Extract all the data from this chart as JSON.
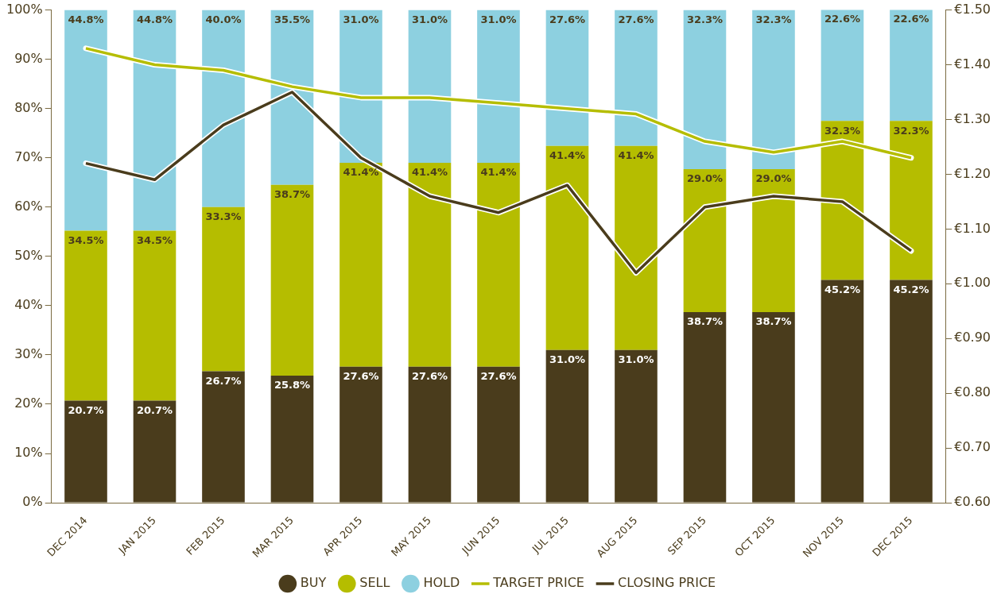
{
  "chart_data": {
    "type": "bar",
    "stacked": true,
    "legend": "bottom",
    "grid": false,
    "marker": "none",
    "categories": [
      "DEC 2014",
      "JAN 2015",
      "FEB 2015",
      "MAR 2015",
      "APR 2015",
      "MAY 2015",
      "JUN 2015",
      "JUL 2015",
      "AUG 2015",
      "SEP 2015",
      "OCT 2015",
      "NOV 2015",
      "DEC 2015"
    ],
    "ylim": [
      0,
      100
    ],
    "yticks": [
      {
        "value": 0,
        "label": "0%"
      },
      {
        "value": 10,
        "label": "10%"
      },
      {
        "value": 20,
        "label": "20%"
      },
      {
        "value": 30,
        "label": "30%"
      },
      {
        "value": 40,
        "label": "40%"
      },
      {
        "value": 50,
        "label": "50%"
      },
      {
        "value": 60,
        "label": "60%"
      },
      {
        "value": 70,
        "label": "70%"
      },
      {
        "value": 80,
        "label": "80%"
      },
      {
        "value": 90,
        "label": "90%"
      },
      {
        "value": 100,
        "label": "100%"
      }
    ],
    "y2lim": [
      0.6,
      1.5
    ],
    "y2ticks": [
      {
        "value": 0.6,
        "label": "€0.60"
      },
      {
        "value": 0.7,
        "label": "€0.70"
      },
      {
        "value": 0.8,
        "label": "€0.80"
      },
      {
        "value": 0.9,
        "label": "€0.90"
      },
      {
        "value": 1.0,
        "label": "€1.00"
      },
      {
        "value": 1.1,
        "label": "€1.10"
      },
      {
        "value": 1.2,
        "label": "€1.20"
      },
      {
        "value": 1.3,
        "label": "€1.30"
      },
      {
        "value": 1.4,
        "label": "€1.40"
      },
      {
        "value": 1.5,
        "label": "€1.50"
      }
    ],
    "series": [
      {
        "name": "BUY",
        "color": "#4a3c1c",
        "values": [
          20.7,
          20.7,
          26.7,
          25.8,
          27.6,
          27.6,
          27.6,
          31.0,
          31.0,
          38.7,
          38.7,
          45.2,
          45.2
        ],
        "value_labels": [
          "20.7%",
          "20.7%",
          "26.7%",
          "25.8%",
          "27.6%",
          "27.6%",
          "27.6%",
          "31.0%",
          "31.0%",
          "38.7%",
          "38.7%",
          "45.2%",
          "45.2%"
        ]
      },
      {
        "name": "SELL",
        "color": "#b5bd00",
        "values": [
          34.5,
          34.5,
          33.3,
          38.7,
          41.4,
          41.4,
          41.4,
          41.4,
          41.4,
          29.0,
          29.0,
          32.3,
          32.3
        ],
        "value_labels": [
          "34.5%",
          "34.5%",
          "33.3%",
          "38.7%",
          "41.4%",
          "41.4%",
          "41.4%",
          "41.4%",
          "41.4%",
          "29.0%",
          "29.0%",
          "32.3%",
          "32.3%"
        ]
      },
      {
        "name": "HOLD",
        "color": "#8dd0e0",
        "values": [
          44.8,
          44.8,
          40.0,
          35.5,
          31.0,
          31.0,
          31.0,
          27.6,
          27.6,
          32.3,
          32.3,
          22.6,
          22.6
        ],
        "value_labels": [
          "44.8%",
          "44.8%",
          "40.0%",
          "35.5%",
          "31.0%",
          "31.0%",
          "31.0%",
          "27.6%",
          "27.6%",
          "32.3%",
          "32.3%",
          "22.6%",
          "22.6%"
        ]
      },
      {
        "name": "TARGET PRICE",
        "type": "line",
        "axis": "y2",
        "color": "#b5bd00",
        "values": [
          1.43,
          1.4,
          1.39,
          1.36,
          1.34,
          1.34,
          1.33,
          1.32,
          1.31,
          1.26,
          1.24,
          1.26,
          1.23
        ]
      },
      {
        "name": "CLOSING PRICE",
        "type": "line",
        "axis": "y2",
        "color": "#4a3c1c",
        "values": [
          1.22,
          1.19,
          1.29,
          1.35,
          1.23,
          1.16,
          1.13,
          1.18,
          1.02,
          1.14,
          1.16,
          1.15,
          1.06
        ]
      }
    ]
  }
}
